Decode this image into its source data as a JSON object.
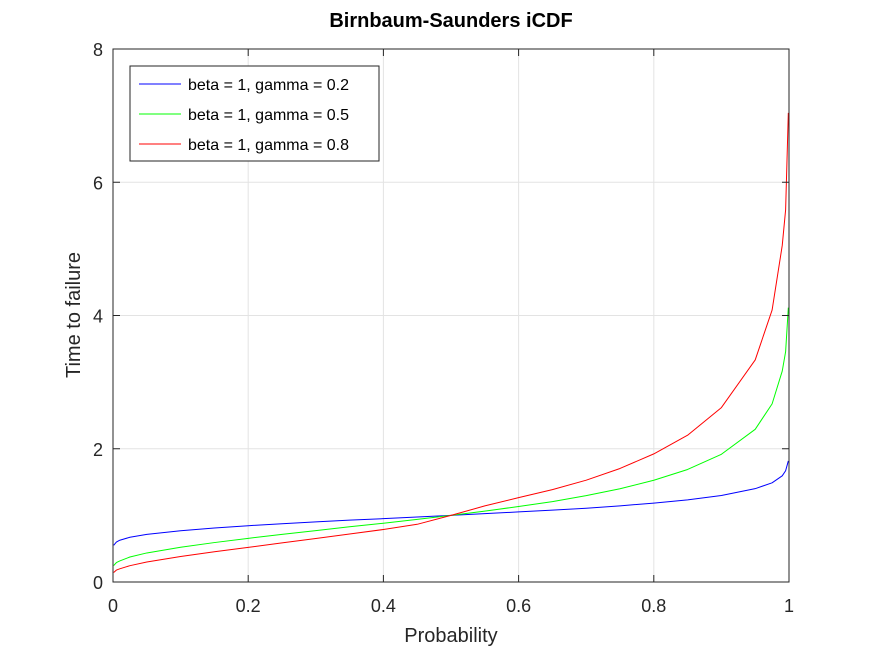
{
  "chart_data": {
    "type": "line",
    "title": "Birnbaum-Saunders iCDF",
    "xlabel": "Probability",
    "ylabel": "Time to failure",
    "xlim": [
      0,
      1
    ],
    "ylim": [
      0,
      8
    ],
    "xticks": [
      0,
      0.2,
      0.4,
      0.6,
      0.8,
      1
    ],
    "xtick_labels": [
      "0",
      "0.2",
      "0.4",
      "0.6",
      "0.8",
      "1"
    ],
    "yticks": [
      0,
      2,
      4,
      6,
      8
    ],
    "ytick_labels": [
      "0",
      "2",
      "4",
      "6",
      "8"
    ],
    "grid": true,
    "legend_position": "top-left",
    "x": [
      0.001,
      0.005,
      0.01,
      0.025,
      0.05,
      0.1,
      0.15,
      0.2,
      0.25,
      0.3,
      0.35,
      0.4,
      0.45,
      0.5,
      0.55,
      0.6,
      0.65,
      0.7,
      0.75,
      0.8,
      0.85,
      0.9,
      0.95,
      0.975,
      0.99,
      0.995,
      0.999
    ],
    "series": [
      {
        "name": "beta = 1, gamma = 0.2",
        "color": "#0000ff",
        "values": [
          0.551,
          0.599,
          0.627,
          0.672,
          0.714,
          0.77,
          0.811,
          0.845,
          0.875,
          0.903,
          0.929,
          0.951,
          0.975,
          1.0,
          1.026,
          1.052,
          1.078,
          1.107,
          1.143,
          1.184,
          1.233,
          1.298,
          1.401,
          1.489,
          1.594,
          1.67,
          1.817
        ]
      },
      {
        "name": "beta = 1, gamma = 0.5",
        "color": "#00ff00",
        "values": [
          0.247,
          0.291,
          0.316,
          0.375,
          0.436,
          0.522,
          0.592,
          0.655,
          0.715,
          0.772,
          0.83,
          0.882,
          0.94,
          1.0,
          1.064,
          1.133,
          1.206,
          1.296,
          1.4,
          1.527,
          1.689,
          1.917,
          2.292,
          2.673,
          3.166,
          3.457,
          4.118
        ]
      },
      {
        "name": "beta = 1, gamma = 0.8",
        "color": "#ff0000",
        "values": [
          0.142,
          0.179,
          0.198,
          0.245,
          0.3,
          0.382,
          0.454,
          0.52,
          0.587,
          0.653,
          0.721,
          0.788,
          0.866,
          1.0,
          1.142,
          1.266,
          1.387,
          1.528,
          1.704,
          1.923,
          2.203,
          2.618,
          3.333,
          4.082,
          5.051,
          5.587,
          7.042
        ]
      }
    ]
  }
}
